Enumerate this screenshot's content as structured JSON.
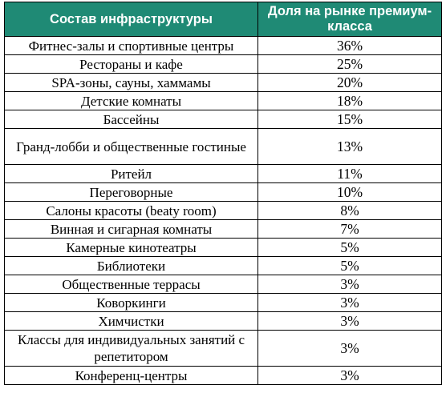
{
  "table": {
    "headers": [
      "Состав инфраструктуры",
      "Доля на рынке премиум-класса"
    ],
    "rows": [
      {
        "name": "Фитнес-залы и спортивные центры",
        "share": "36%"
      },
      {
        "name": "Рестораны и кафе",
        "share": "25%"
      },
      {
        "name": "SPA-зоны, сауны, хаммамы",
        "share": "20%"
      },
      {
        "name": "Детские комнаты",
        "share": "18%"
      },
      {
        "name": "Бассейны",
        "share": "15%"
      },
      {
        "name": "Гранд-лобби и общественные гостиные",
        "share": "13%"
      },
      {
        "name": "Ритейл",
        "share": "11%"
      },
      {
        "name": "Переговорные",
        "share": "10%"
      },
      {
        "name": "Салоны красоты (beaty room)",
        "share": "8%"
      },
      {
        "name": "Винная и сигарная комнаты",
        "share": "7%"
      },
      {
        "name": "Камерные кинотеатры",
        "share": "5%"
      },
      {
        "name": "Библиотеки",
        "share": "5%"
      },
      {
        "name": "Общественные террасы",
        "share": "3%"
      },
      {
        "name": "Коворкинги",
        "share": "3%"
      },
      {
        "name": "Химчистки",
        "share": "3%"
      },
      {
        "name": "Классы для индивидуальных занятий с репетитором",
        "share": "3%"
      },
      {
        "name": "Конференц-центры",
        "share": "3%"
      }
    ]
  },
  "colors": {
    "header_background": "#1f8a75",
    "header_text": "#ffffff",
    "border": "#000000"
  }
}
